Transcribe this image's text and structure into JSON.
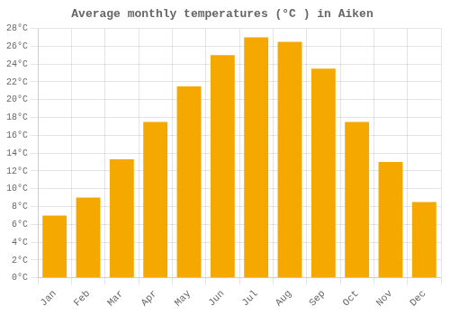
{
  "chart_data": {
    "type": "bar",
    "title": "Average monthly temperatures (°C ) in Aiken",
    "categories": [
      "Jan",
      "Feb",
      "Mar",
      "Apr",
      "May",
      "Jun",
      "Jul",
      "Aug",
      "Sep",
      "Oct",
      "Nov",
      "Dec"
    ],
    "values": [
      7.0,
      9.0,
      13.3,
      17.5,
      21.5,
      25.0,
      27.0,
      26.5,
      23.5,
      17.5,
      13.0,
      8.5
    ],
    "color": "#F5A800",
    "ylim": [
      0,
      28
    ],
    "yticks": [
      {
        "value": 0,
        "label": "0°C"
      },
      {
        "value": 2,
        "label": "2°C"
      },
      {
        "value": 4,
        "label": "4°C"
      },
      {
        "value": 6,
        "label": "6°C"
      },
      {
        "value": 8,
        "label": "8°C"
      },
      {
        "value": 10,
        "label": "10°C"
      },
      {
        "value": 12,
        "label": "12°C"
      },
      {
        "value": 14,
        "label": "14°C"
      },
      {
        "value": 16,
        "label": "16°C"
      },
      {
        "value": 18,
        "label": "18°C"
      },
      {
        "value": 20,
        "label": "20°C"
      },
      {
        "value": 22,
        "label": "22°C"
      },
      {
        "value": 24,
        "label": "24°C"
      },
      {
        "value": 26,
        "label": "26°C"
      },
      {
        "value": 28,
        "label": "28°C"
      }
    ],
    "grid": true
  }
}
